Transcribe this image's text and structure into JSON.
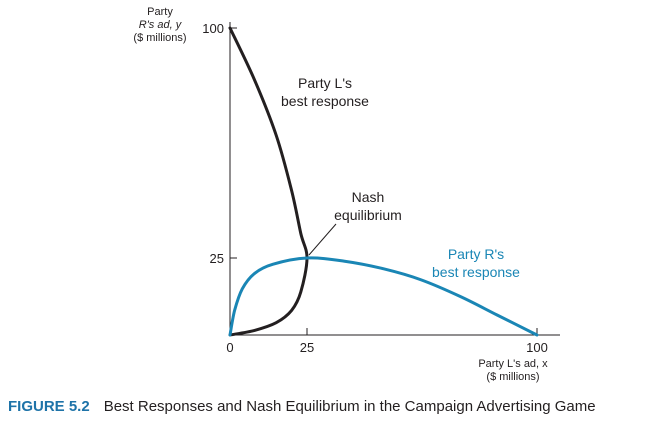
{
  "chart_data": {
    "type": "line",
    "xlabel": [
      "Party L's ad, x",
      "($ millions)"
    ],
    "ylabel": [
      "Party",
      "R's ad, y",
      "($ millions)"
    ],
    "x_ticks": [
      "0",
      "25",
      "100"
    ],
    "y_ticks": [
      "25",
      "100"
    ],
    "xlim": [
      0,
      100
    ],
    "ylim": [
      0,
      100
    ],
    "grid": false,
    "series": [
      {
        "name": "Party L's best response",
        "color": "#231f20",
        "x": [
          0,
          8,
          15,
          20,
          23,
          25,
          23,
          20,
          15,
          8,
          0
        ],
        "y": [
          100,
          83,
          65,
          47,
          33,
          25,
          14,
          8,
          4,
          1.5,
          0
        ]
      },
      {
        "name": "Party R's best response",
        "color": "#1a86b5",
        "x": [
          0,
          1.5,
          4,
          8,
          14,
          25,
          37,
          50,
          62,
          75,
          87,
          100
        ],
        "y": [
          0,
          8,
          15,
          20,
          23,
          25,
          24,
          21.5,
          18,
          12.5,
          6.5,
          0
        ]
      }
    ],
    "annotations": {
      "l_best_response": [
        "Party L's",
        "best response"
      ],
      "r_best_response": [
        "Party R's",
        "best response"
      ],
      "nash": [
        "Nash",
        "equilibrium"
      ]
    }
  },
  "caption": {
    "number": "FIGURE 5.2",
    "text": "Best Responses and Nash Equilibrium in the Campaign Advertising Game"
  }
}
